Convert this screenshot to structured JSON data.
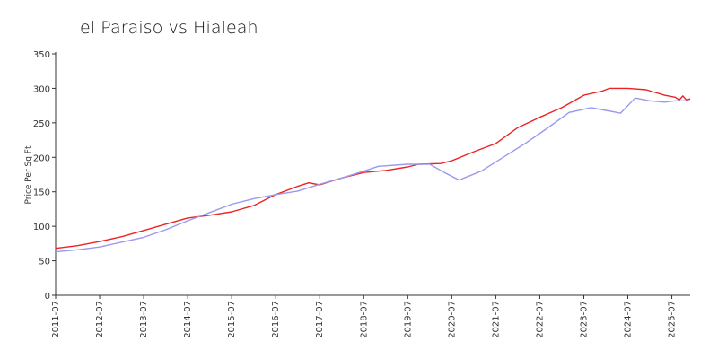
{
  "chart_data": {
    "type": "line",
    "title": "el Paraiso vs Hialeah",
    "xlabel": "",
    "ylabel": "Price Per Sq Ft",
    "ylim": [
      0,
      350
    ],
    "yticks": [
      0,
      50,
      100,
      150,
      200,
      250,
      300,
      350
    ],
    "xlim": [
      "2011-07",
      "2025-12"
    ],
    "xticks": [
      "2011-07",
      "2012-07",
      "2013-07",
      "2014-07",
      "2015-07",
      "2016-07",
      "2017-07",
      "2018-07",
      "2019-07",
      "2020-07",
      "2021-07",
      "2022-07",
      "2023-07",
      "2024-07",
      "2025-07"
    ],
    "grid": false,
    "legend": "none",
    "series": [
      {
        "color": "#ee2222",
        "points": [
          [
            "2011-07",
            68
          ],
          [
            "2012-01",
            72
          ],
          [
            "2012-07",
            78
          ],
          [
            "2013-01",
            85
          ],
          [
            "2013-07",
            94
          ],
          [
            "2014-01",
            103
          ],
          [
            "2014-07",
            112
          ],
          [
            "2015-01",
            116
          ],
          [
            "2015-07",
            121
          ],
          [
            "2016-01",
            130
          ],
          [
            "2016-07",
            146
          ],
          [
            "2017-01",
            158
          ],
          [
            "2017-04",
            163
          ],
          [
            "2017-07",
            160
          ],
          [
            "2018-01",
            170
          ],
          [
            "2018-07",
            178
          ],
          [
            "2019-01",
            181
          ],
          [
            "2019-07",
            186
          ],
          [
            "2019-10",
            190
          ],
          [
            "2020-04",
            191
          ],
          [
            "2020-07",
            195
          ],
          [
            "2021-01",
            208
          ],
          [
            "2021-07",
            220
          ],
          [
            "2022-01",
            243
          ],
          [
            "2022-07",
            258
          ],
          [
            "2023-01",
            272
          ],
          [
            "2023-07",
            290
          ],
          [
            "2023-12",
            296
          ],
          [
            "2024-02",
            300
          ],
          [
            "2024-07",
            300
          ],
          [
            "2024-12",
            298
          ],
          [
            "2025-05",
            290
          ],
          [
            "2025-08",
            287
          ],
          [
            "2025-09",
            283
          ],
          [
            "2025-10",
            289
          ],
          [
            "2025-11",
            283
          ],
          [
            "2025-12",
            285
          ]
        ]
      },
      {
        "color": "#9999ee",
        "points": [
          [
            "2011-07",
            63
          ],
          [
            "2012-01",
            66
          ],
          [
            "2012-07",
            70
          ],
          [
            "2013-01",
            77
          ],
          [
            "2013-07",
            84
          ],
          [
            "2014-01",
            95
          ],
          [
            "2014-07",
            108
          ],
          [
            "2015-01",
            120
          ],
          [
            "2015-07",
            132
          ],
          [
            "2016-01",
            140
          ],
          [
            "2016-07",
            146
          ],
          [
            "2017-01",
            151
          ],
          [
            "2017-07",
            161
          ],
          [
            "2018-01",
            170
          ],
          [
            "2018-07",
            180
          ],
          [
            "2018-11",
            187
          ],
          [
            "2019-07",
            190
          ],
          [
            "2020-01",
            190
          ],
          [
            "2020-05",
            178
          ],
          [
            "2020-09",
            167
          ],
          [
            "2021-03",
            180
          ],
          [
            "2021-09",
            200
          ],
          [
            "2022-03",
            220
          ],
          [
            "2022-09",
            242
          ],
          [
            "2023-03",
            265
          ],
          [
            "2023-09",
            272
          ],
          [
            "2024-01",
            268
          ],
          [
            "2024-05",
            264
          ],
          [
            "2024-09",
            286
          ],
          [
            "2025-01",
            282
          ],
          [
            "2025-05",
            280
          ],
          [
            "2025-08",
            282
          ],
          [
            "2025-12",
            282
          ]
        ]
      }
    ]
  }
}
